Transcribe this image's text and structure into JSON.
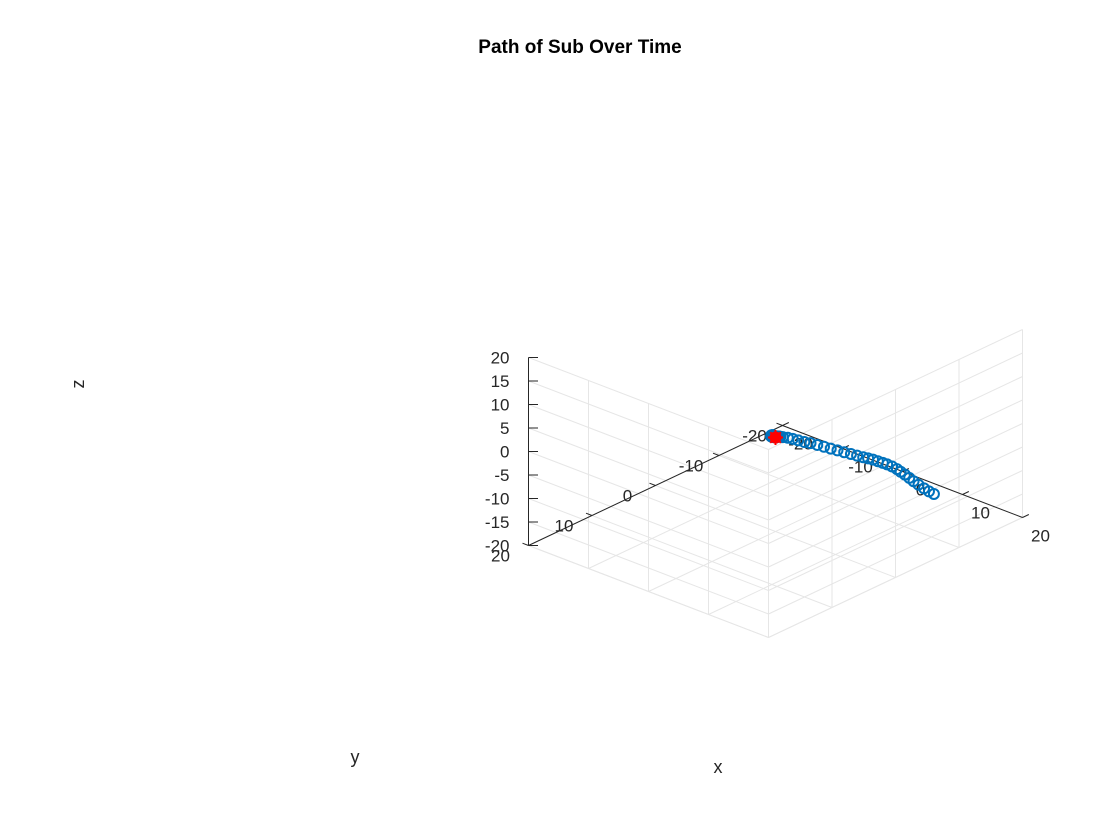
{
  "chart_data": {
    "type": "scatter",
    "title": "Path of Sub Over Time",
    "xlabel": "x",
    "ylabel": "y",
    "zlabel": "z",
    "xlim": [
      -20,
      20
    ],
    "ylim": [
      -20,
      20
    ],
    "zlim": [
      -20,
      20
    ],
    "xticks": [
      "-20",
      "-10",
      "0",
      "10",
      "20"
    ],
    "yticks": [
      "-20",
      "-10",
      "0",
      "10",
      "20"
    ],
    "zticks": [
      "-20",
      "-15",
      "-10",
      "-5",
      "0",
      "5",
      "10",
      "15",
      "20"
    ],
    "grid": true,
    "view": "3d-default",
    "series": [
      {
        "marker": "circle",
        "color": "#0072BD",
        "points": [
          [
            0,
            0,
            0
          ],
          [
            0.2,
            0.4,
            0.6
          ],
          [
            0.4,
            0.8,
            1.2
          ],
          [
            0.7,
            1.2,
            1.6
          ],
          [
            1.0,
            1.6,
            2.0
          ],
          [
            1.3,
            1.9,
            2.2
          ],
          [
            1.5,
            2.1,
            2.3
          ],
          [
            1.7,
            2.2,
            2.4
          ],
          [
            1.8,
            2.2,
            2.4
          ],
          [
            1.8,
            2.1,
            2.3
          ],
          [
            1.8,
            1.9,
            2.2
          ],
          [
            1.7,
            1.7,
            2.1
          ],
          [
            1.6,
            1.5,
            1.9
          ],
          [
            1.5,
            1.3,
            1.6
          ],
          [
            1.3,
            1.0,
            1.4
          ],
          [
            1.0,
            0.6,
            1.1
          ],
          [
            0.8,
            0.3,
            0.8
          ],
          [
            0.6,
            0.0,
            0.5
          ],
          [
            0.5,
            -0.3,
            0.2
          ],
          [
            0.6,
            -0.6,
            0.0
          ],
          [
            1.0,
            -1.0,
            -0.2
          ],
          [
            1.5,
            -1.3,
            -0.4
          ],
          [
            2.1,
            -1.6,
            -0.6
          ],
          [
            2.8,
            -1.9,
            -0.8
          ],
          [
            3.4,
            -2.3,
            -1.0
          ],
          [
            4.1,
            -2.7,
            -1.3
          ],
          [
            4.8,
            -3.1,
            -1.6
          ],
          [
            5.5,
            -3.5,
            -1.9
          ],
          [
            6.2,
            -3.9,
            -2.2
          ],
          [
            6.9,
            -4.3,
            -2.5
          ],
          [
            7.6,
            -4.7,
            -2.8
          ],
          [
            8.2,
            -5.1,
            -3.1
          ],
          [
            8.8,
            -5.5,
            -3.4
          ],
          [
            9.3,
            -5.8,
            -3.6
          ],
          [
            9.8,
            -6.1,
            -3.8
          ],
          [
            10.3,
            -6.4,
            -4.1
          ],
          [
            10.8,
            -6.7,
            -4.4
          ],
          [
            11.2,
            -7.0,
            -4.7
          ],
          [
            11.7,
            -7.3,
            -5.1
          ],
          [
            12.2,
            -7.6,
            -5.6
          ],
          [
            12.6,
            -7.8,
            -6.1
          ],
          [
            13.0,
            -8.1,
            -6.7
          ],
          [
            13.4,
            -8.4,
            -7.4
          ],
          [
            13.8,
            -8.7,
            -8.1
          ],
          [
            14.2,
            -9.1,
            -8.9
          ],
          [
            14.7,
            -9.5,
            -9.7
          ],
          [
            15.1,
            -9.9,
            -10.4
          ],
          [
            15.5,
            -10.3,
            -11.0
          ]
        ]
      },
      {
        "marker": "star-filled",
        "color": "#FF0000",
        "points": [
          [
            0,
            0,
            0
          ]
        ]
      }
    ]
  }
}
